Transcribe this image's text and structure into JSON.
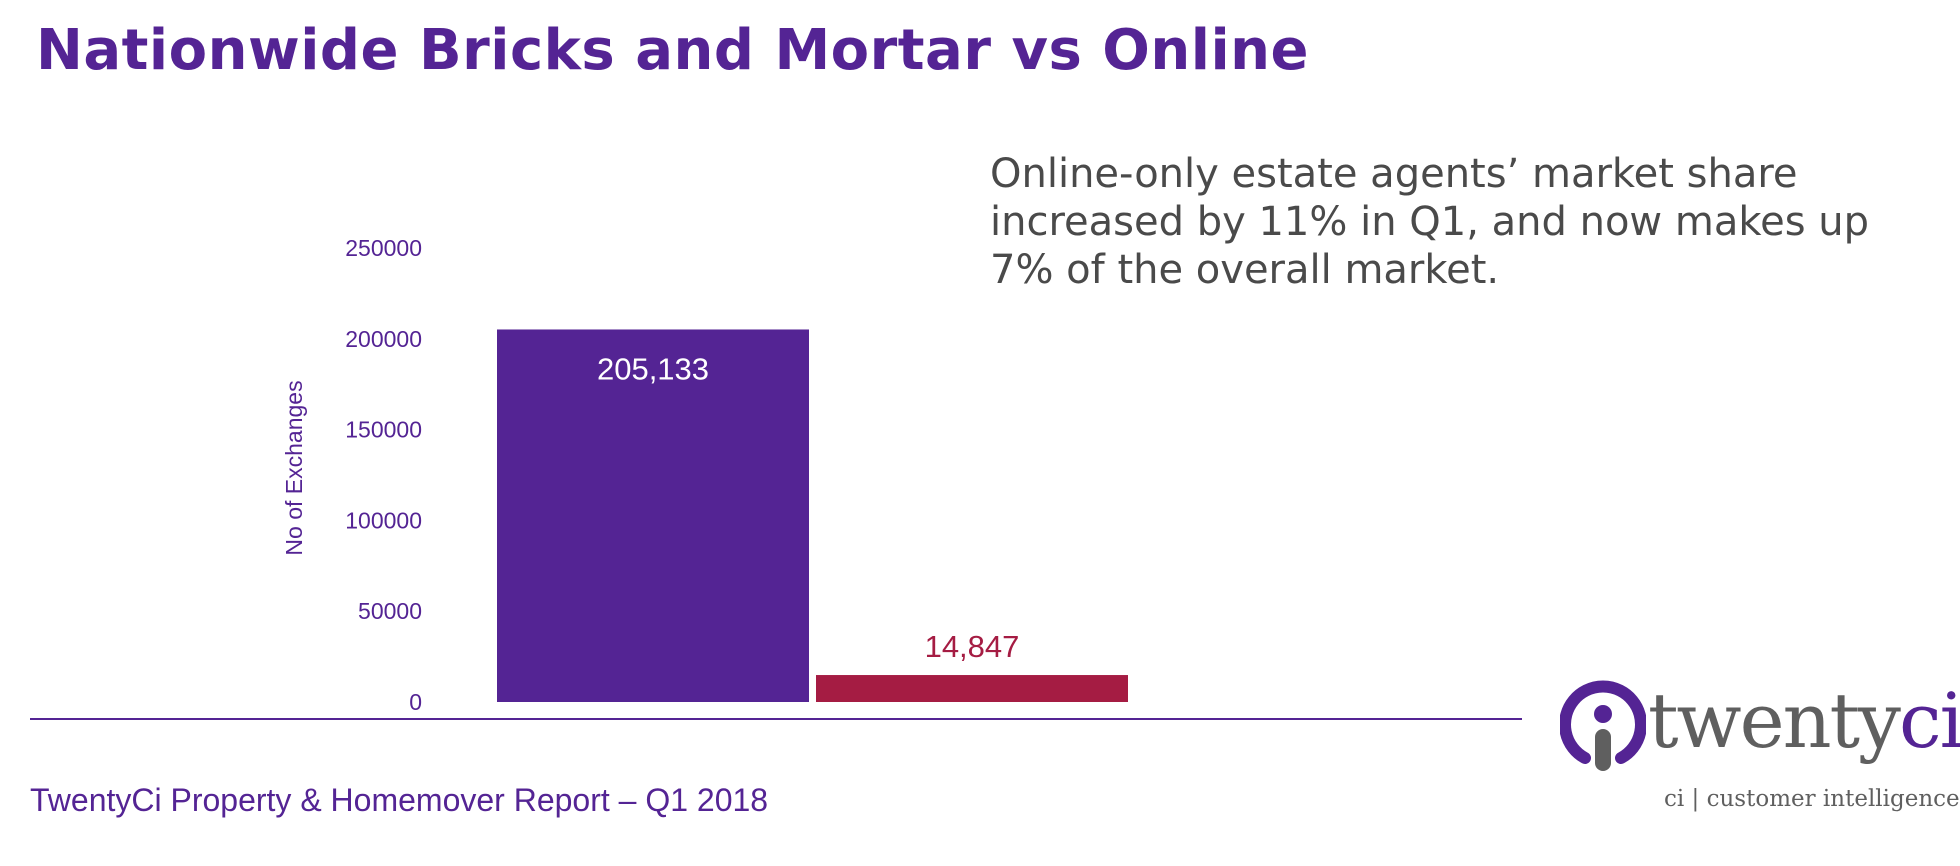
{
  "title": "Nationwide Bricks and Mortar vs Online",
  "callout": "Online-only estate agents’ market share increased by 11% in Q1, and now makes up 7% of the overall market.",
  "footer": "TwentyCi Property & Homemover Report – Q1 2018",
  "logo": {
    "word_main": "twenty",
    "word_accent": "ci",
    "tagline": "ci | customer intelligence",
    "mark_icon": "twentyci-i-icon"
  },
  "colors": {
    "brand_purple": "#542494",
    "online_crimson": "#a51c43",
    "text_grey": "#4a4a4a"
  },
  "chart_data": {
    "type": "bar",
    "title": "",
    "xlabel": "",
    "ylabel": "No of Exchanges",
    "ylim": [
      0,
      250000
    ],
    "yticks": [
      "0",
      "50000",
      "100000",
      "150000",
      "200000",
      "250000"
    ],
    "grid": false,
    "legend": "none",
    "values": [
      205133,
      14847
    ],
    "value_labels": [
      "205,133",
      "14,847"
    ],
    "colors": [
      "#542494",
      "#a51c43"
    ],
    "label_colors": [
      "#ffffff",
      "#a51c43"
    ]
  }
}
